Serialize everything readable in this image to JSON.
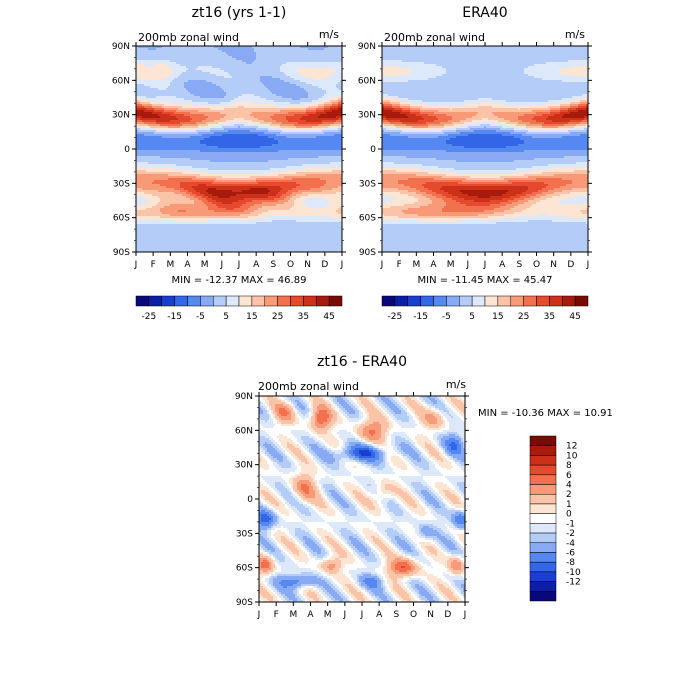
{
  "chart_data": [
    {
      "type": "heatmap",
      "title": "zt16 (yrs 1-1)",
      "subtitle": "200mb zonal wind",
      "units": "m/s",
      "x_ticks": [
        "J",
        "F",
        "M",
        "A",
        "M",
        "J",
        "J",
        "A",
        "S",
        "O",
        "N",
        "D",
        "J"
      ],
      "y_ticks": [
        "90N",
        "60N",
        "30N",
        "0",
        "30S",
        "60S",
        "90S"
      ],
      "ylim": [
        -90,
        90
      ],
      "min_max_text": "MIN = -12.37 MAX =  46.89",
      "colorbar_labels": [
        "-25",
        "-15",
        "-5",
        "5",
        "15",
        "25",
        "35",
        "45"
      ],
      "colorbar_colors": [
        "#08087a",
        "#0a1ea8",
        "#1a3fd0",
        "#3366e6",
        "#5588f0",
        "#88aaf5",
        "#b3ccf8",
        "#dde8fa",
        "#fde5d3",
        "#fbc4a8",
        "#f89a78",
        "#f2704d",
        "#e54a2e",
        "#cc3018",
        "#a81a0c",
        "#7a0a04"
      ]
    },
    {
      "type": "heatmap",
      "title": "ERA40",
      "subtitle": "200mb zonal wind",
      "units": "m/s",
      "x_ticks": [
        "J",
        "F",
        "M",
        "A",
        "M",
        "J",
        "J",
        "A",
        "S",
        "O",
        "N",
        "D",
        "J"
      ],
      "y_ticks": [
        "90N",
        "60N",
        "30N",
        "0",
        "30S",
        "60S",
        "90S"
      ],
      "ylim": [
        -90,
        90
      ],
      "min_max_text": "MIN = -11.45 MAX =  45.47",
      "colorbar_labels": [
        "-25",
        "-15",
        "-5",
        "5",
        "15",
        "25",
        "35",
        "45"
      ],
      "colorbar_colors": [
        "#08087a",
        "#0a1ea8",
        "#1a3fd0",
        "#3366e6",
        "#5588f0",
        "#88aaf5",
        "#b3ccf8",
        "#dde8fa",
        "#fde5d3",
        "#fbc4a8",
        "#f89a78",
        "#f2704d",
        "#e54a2e",
        "#cc3018",
        "#a81a0c",
        "#7a0a04"
      ]
    },
    {
      "type": "heatmap",
      "title": "zt16 - ERA40",
      "subtitle": "200mb zonal wind",
      "units": "m/s",
      "x_ticks": [
        "J",
        "F",
        "M",
        "A",
        "M",
        "J",
        "J",
        "A",
        "S",
        "O",
        "N",
        "D",
        "J"
      ],
      "y_ticks": [
        "90N",
        "60N",
        "30N",
        "0",
        "30S",
        "60S",
        "90S"
      ],
      "ylim": [
        -90,
        90
      ],
      "min_max_text": "MIN = -10.36 MAX =  10.91",
      "colorbar_labels": [
        "12",
        "10",
        "8",
        "6",
        "4",
        "2",
        "1",
        "0",
        "-1",
        "-2",
        "-4",
        "-6",
        "-8",
        "-10",
        "-12"
      ],
      "colorbar_colors": [
        "#7a0a04",
        "#a81a0c",
        "#cc3018",
        "#e54a2e",
        "#f2704d",
        "#f89a78",
        "#fbc4a8",
        "#fde5d3",
        "#ffffff",
        "#dde8fa",
        "#b3ccf8",
        "#88aaf5",
        "#5588f0",
        "#3366e6",
        "#1a3fd0",
        "#0a1ea8",
        "#08087a"
      ]
    }
  ]
}
